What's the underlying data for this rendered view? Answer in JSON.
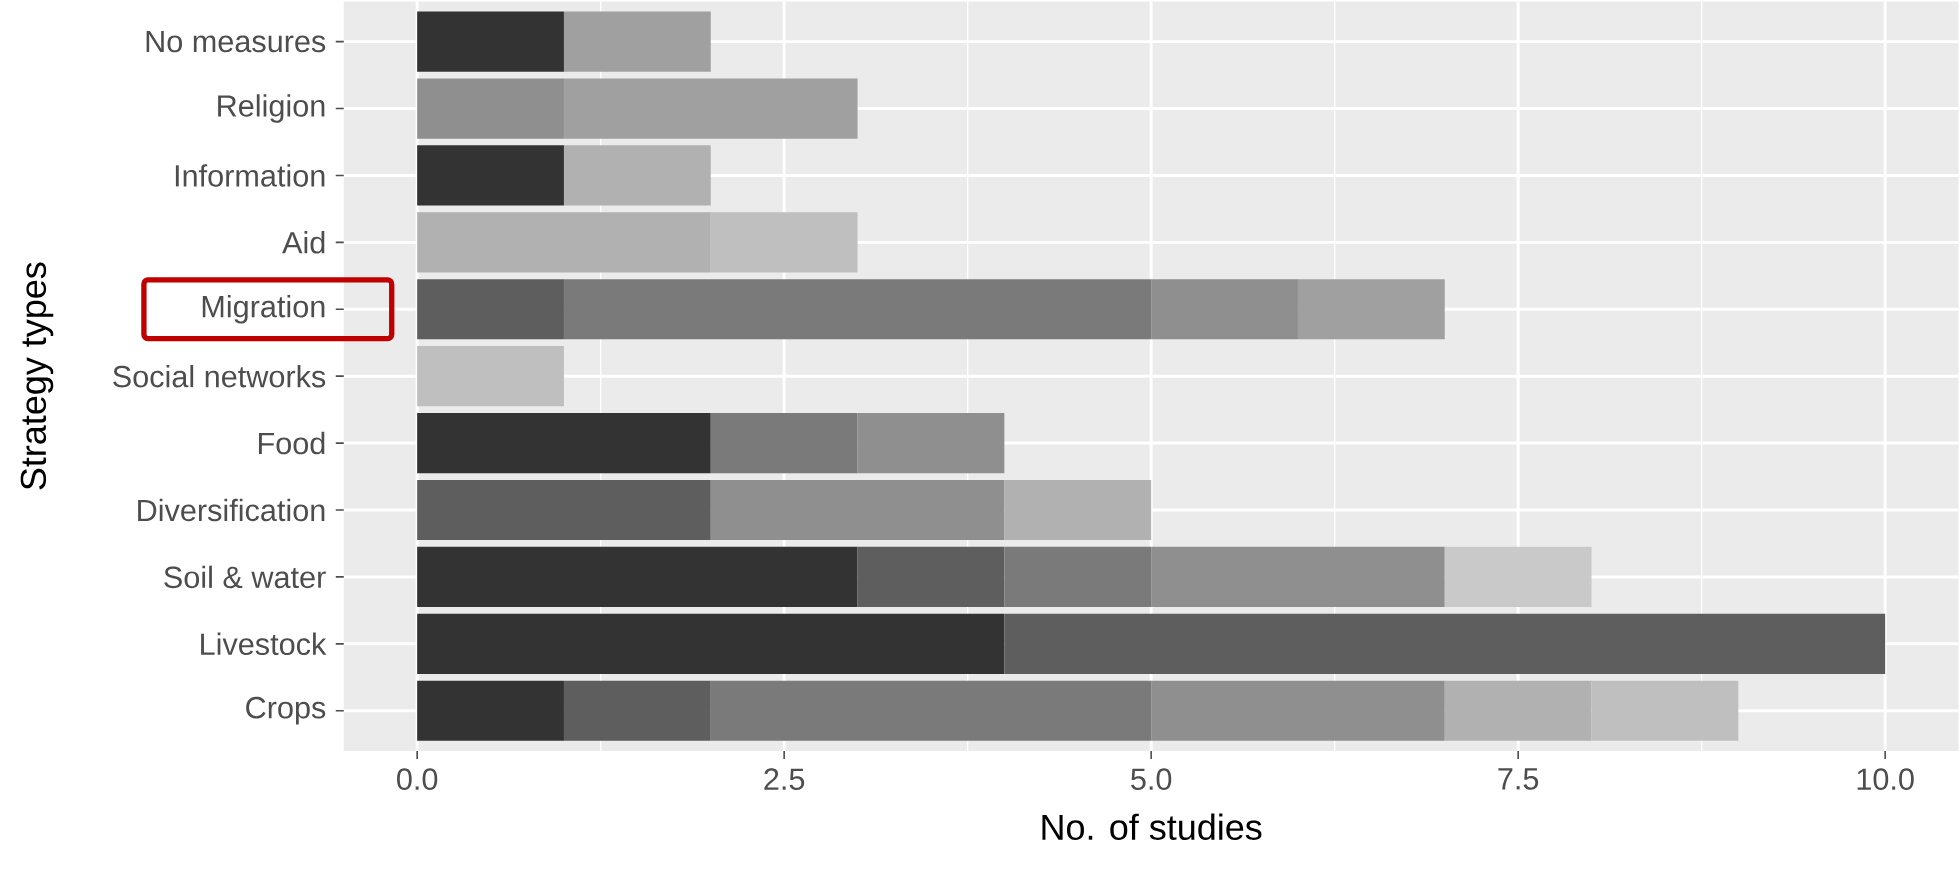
{
  "chart_data": {
    "type": "bar",
    "orientation": "horizontal",
    "stacked": true,
    "xlabel": "No. of studies",
    "ylabel": "Strategy types",
    "categories": [
      "No measures",
      "Religion",
      "Information",
      "Aid",
      "Migration",
      "Social networks",
      "Food",
      "Diversification",
      "Soil & water",
      "Livestock",
      "Crops"
    ],
    "series": [
      {
        "color": "#333333",
        "values": [
          1,
          null,
          1,
          null,
          null,
          null,
          2,
          null,
          3,
          4,
          1
        ]
      },
      {
        "color": "#5e5e5e",
        "values": [
          null,
          null,
          null,
          null,
          1,
          null,
          null,
          2,
          1,
          6,
          1
        ]
      },
      {
        "color": "#7a7a7a",
        "values": [
          null,
          null,
          null,
          null,
          4,
          null,
          1,
          null,
          1,
          null,
          3
        ]
      },
      {
        "color": "#8f8f8f",
        "values": [
          null,
          1,
          null,
          null,
          1,
          null,
          1,
          2,
          2,
          null,
          2
        ]
      },
      {
        "color": "#a0a0a0",
        "values": [
          1,
          2,
          null,
          null,
          1,
          null,
          null,
          null,
          null,
          null,
          null
        ]
      },
      {
        "color": "#b1b1b1",
        "values": [
          null,
          null,
          1,
          2,
          null,
          null,
          null,
          1,
          null,
          null,
          1
        ]
      },
      {
        "color": "#bfbfbf",
        "values": [
          null,
          null,
          null,
          1,
          null,
          1,
          null,
          null,
          null,
          null,
          1
        ]
      },
      {
        "color": "#c9c9c9",
        "values": [
          null,
          null,
          null,
          null,
          null,
          null,
          null,
          null,
          1,
          null,
          null
        ]
      }
    ],
    "xlim": [
      -0.5,
      10.5
    ],
    "xticks": [
      {
        "value": 0,
        "label": "0.0"
      },
      {
        "value": 2.5,
        "label": "2.5"
      },
      {
        "value": 5,
        "label": "5.0"
      },
      {
        "value": 7.5,
        "label": "7.5"
      },
      {
        "value": 10,
        "label": "10.0"
      }
    ],
    "grid": true
  }
}
